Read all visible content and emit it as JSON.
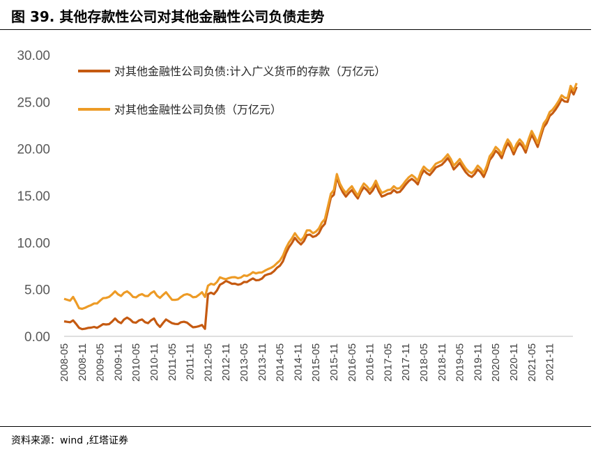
{
  "title": "图 39. 其他存款性公司对其他金融性公司负债走势",
  "source": "资料来源：wind ,红塔证券",
  "chart_data": {
    "type": "line",
    "ylim": [
      0,
      30
    ],
    "yticks": [
      "0.00",
      "5.00",
      "10.00",
      "15.00",
      "20.00",
      "25.00",
      "30.00"
    ],
    "xticks": [
      "2008-05",
      "2008-11",
      "2009-05",
      "2009-11",
      "2010-05",
      "2010-11",
      "2011-05",
      "2011-11",
      "2012-05",
      "2012-11",
      "2013-05",
      "2013-11",
      "2014-05",
      "2014-11",
      "2015-05",
      "2015-11",
      "2016-05",
      "2016-11",
      "2017-05",
      "2017-11",
      "2018-05",
      "2018-11",
      "2019-05",
      "2019-11",
      "2020-05",
      "2020-11",
      "2021-05",
      "2021-11"
    ],
    "legend_position": "top-left",
    "grid": false,
    "series": [
      {
        "name": "对其他金融性公司负债:计入广义货币的存款（万亿元）",
        "color": "#C55A11",
        "anchors": [
          [
            "2008-05",
            1.6
          ],
          [
            "2008-07",
            1.5
          ],
          [
            "2008-08",
            1.7
          ],
          [
            "2008-10",
            0.9
          ],
          [
            "2009-01",
            0.9
          ],
          [
            "2009-05",
            1.1
          ],
          [
            "2009-08",
            1.3
          ],
          [
            "2009-10",
            1.9
          ],
          [
            "2009-12",
            1.4
          ],
          [
            "2010-02",
            2.0
          ],
          [
            "2010-04",
            1.5
          ],
          [
            "2010-07",
            1.8
          ],
          [
            "2010-09",
            1.4
          ],
          [
            "2010-11",
            1.9
          ],
          [
            "2011-01",
            1.0
          ],
          [
            "2011-03",
            1.8
          ],
          [
            "2011-05",
            1.4
          ],
          [
            "2011-08",
            1.5
          ],
          [
            "2011-11",
            1.2
          ],
          [
            "2012-01",
            1.0
          ],
          [
            "2012-03",
            1.2
          ],
          [
            "2012-04",
            0.8
          ],
          [
            "2012-05",
            4.5
          ],
          [
            "2012-07",
            4.5
          ],
          [
            "2012-09",
            5.5
          ],
          [
            "2012-11",
            5.9
          ],
          [
            "2013-01",
            5.6
          ],
          [
            "2013-03",
            5.5
          ],
          [
            "2013-05",
            5.8
          ],
          [
            "2013-07",
            6.0
          ],
          [
            "2013-10",
            6.0
          ],
          [
            "2013-12",
            6.5
          ],
          [
            "2014-02",
            6.7
          ],
          [
            "2014-04",
            7.3
          ],
          [
            "2014-06",
            8.0
          ],
          [
            "2014-08",
            9.5
          ],
          [
            "2014-10",
            10.5
          ],
          [
            "2014-12",
            9.8
          ],
          [
            "2015-02",
            10.8
          ],
          [
            "2015-04",
            10.6
          ],
          [
            "2015-06",
            11.0
          ],
          [
            "2015-08",
            12.0
          ],
          [
            "2015-10",
            14.8
          ],
          [
            "2015-11",
            15.1
          ],
          [
            "2015-12",
            17.0
          ],
          [
            "2016-01",
            16.0
          ],
          [
            "2016-03",
            14.9
          ],
          [
            "2016-05",
            15.6
          ],
          [
            "2016-07",
            14.7
          ],
          [
            "2016-09",
            15.9
          ],
          [
            "2016-11",
            15.2
          ],
          [
            "2017-01",
            16.2
          ],
          [
            "2017-03",
            14.9
          ],
          [
            "2017-05",
            15.2
          ],
          [
            "2017-07",
            15.6
          ],
          [
            "2017-09",
            15.4
          ],
          [
            "2017-11",
            16.2
          ],
          [
            "2018-01",
            16.8
          ],
          [
            "2018-03",
            16.2
          ],
          [
            "2018-05",
            17.7
          ],
          [
            "2018-07",
            17.2
          ],
          [
            "2018-09",
            18.0
          ],
          [
            "2018-11",
            18.3
          ],
          [
            "2019-01",
            19.0
          ],
          [
            "2019-03",
            17.8
          ],
          [
            "2019-05",
            18.5
          ],
          [
            "2019-07",
            17.5
          ],
          [
            "2019-09",
            17.0
          ],
          [
            "2019-11",
            17.8
          ],
          [
            "2020-01",
            17.0
          ],
          [
            "2020-03",
            18.8
          ],
          [
            "2020-05",
            19.8
          ],
          [
            "2020-07",
            19.0
          ],
          [
            "2020-09",
            20.6
          ],
          [
            "2020-11",
            19.4
          ],
          [
            "2021-01",
            20.6
          ],
          [
            "2021-03",
            19.6
          ],
          [
            "2021-05",
            21.5
          ],
          [
            "2021-07",
            20.2
          ],
          [
            "2021-09",
            22.3
          ],
          [
            "2021-11",
            23.5
          ],
          [
            "2022-01",
            24.2
          ],
          [
            "2022-03",
            25.3
          ],
          [
            "2022-05",
            25.0
          ],
          [
            "2022-06",
            26.3
          ],
          [
            "2022-07",
            25.8
          ],
          [
            "2022-08",
            26.6
          ]
        ]
      },
      {
        "name": "对其他金融性公司负债（万亿元）",
        "color": "#ED9B26",
        "anchors": [
          [
            "2008-05",
            4.0
          ],
          [
            "2008-07",
            3.8
          ],
          [
            "2008-08",
            4.2
          ],
          [
            "2008-10",
            3.0
          ],
          [
            "2009-01",
            3.2
          ],
          [
            "2009-05",
            3.8
          ],
          [
            "2009-08",
            4.2
          ],
          [
            "2009-10",
            4.8
          ],
          [
            "2009-12",
            4.3
          ],
          [
            "2010-02",
            4.8
          ],
          [
            "2010-04",
            4.2
          ],
          [
            "2010-07",
            4.5
          ],
          [
            "2010-09",
            4.3
          ],
          [
            "2010-11",
            4.8
          ],
          [
            "2011-01",
            4.1
          ],
          [
            "2011-03",
            4.7
          ],
          [
            "2011-05",
            3.9
          ],
          [
            "2011-08",
            4.2
          ],
          [
            "2011-11",
            4.4
          ],
          [
            "2012-01",
            4.2
          ],
          [
            "2012-03",
            4.7
          ],
          [
            "2012-04",
            4.2
          ],
          [
            "2012-05",
            5.4
          ],
          [
            "2012-07",
            5.5
          ],
          [
            "2012-09",
            6.3
          ],
          [
            "2012-11",
            6.1
          ],
          [
            "2013-01",
            6.3
          ],
          [
            "2013-03",
            6.2
          ],
          [
            "2013-05",
            6.5
          ],
          [
            "2013-07",
            6.6
          ],
          [
            "2013-10",
            6.8
          ],
          [
            "2013-12",
            7.0
          ],
          [
            "2014-02",
            7.3
          ],
          [
            "2014-04",
            7.8
          ],
          [
            "2014-06",
            8.6
          ],
          [
            "2014-08",
            10.0
          ],
          [
            "2014-10",
            11.0
          ],
          [
            "2014-12",
            10.2
          ],
          [
            "2015-02",
            11.3
          ],
          [
            "2015-04",
            11.0
          ],
          [
            "2015-06",
            11.5
          ],
          [
            "2015-08",
            12.5
          ],
          [
            "2015-10",
            15.2
          ],
          [
            "2015-11",
            15.6
          ],
          [
            "2015-12",
            17.3
          ],
          [
            "2016-01",
            16.3
          ],
          [
            "2016-03",
            15.3
          ],
          [
            "2016-05",
            16.0
          ],
          [
            "2016-07",
            15.0
          ],
          [
            "2016-09",
            16.3
          ],
          [
            "2016-11",
            15.6
          ],
          [
            "2017-01",
            16.6
          ],
          [
            "2017-03",
            15.3
          ],
          [
            "2017-05",
            15.6
          ],
          [
            "2017-07",
            16.0
          ],
          [
            "2017-09",
            15.8
          ],
          [
            "2017-11",
            16.6
          ],
          [
            "2018-01",
            17.2
          ],
          [
            "2018-03",
            16.6
          ],
          [
            "2018-05",
            18.1
          ],
          [
            "2018-07",
            17.6
          ],
          [
            "2018-09",
            18.4
          ],
          [
            "2018-11",
            18.7
          ],
          [
            "2019-01",
            19.4
          ],
          [
            "2019-03",
            18.2
          ],
          [
            "2019-05",
            18.9
          ],
          [
            "2019-07",
            17.9
          ],
          [
            "2019-09",
            17.4
          ],
          [
            "2019-11",
            18.2
          ],
          [
            "2020-01",
            17.4
          ],
          [
            "2020-03",
            19.2
          ],
          [
            "2020-05",
            20.2
          ],
          [
            "2020-07",
            19.4
          ],
          [
            "2020-09",
            21.0
          ],
          [
            "2020-11",
            19.8
          ],
          [
            "2021-01",
            21.0
          ],
          [
            "2021-03",
            20.0
          ],
          [
            "2021-05",
            21.9
          ],
          [
            "2021-07",
            20.6
          ],
          [
            "2021-09",
            22.7
          ],
          [
            "2021-11",
            23.9
          ],
          [
            "2022-01",
            24.6
          ],
          [
            "2022-03",
            25.7
          ],
          [
            "2022-05",
            25.4
          ],
          [
            "2022-06",
            26.7
          ],
          [
            "2022-07",
            26.2
          ],
          [
            "2022-08",
            27.0
          ]
        ]
      }
    ]
  }
}
